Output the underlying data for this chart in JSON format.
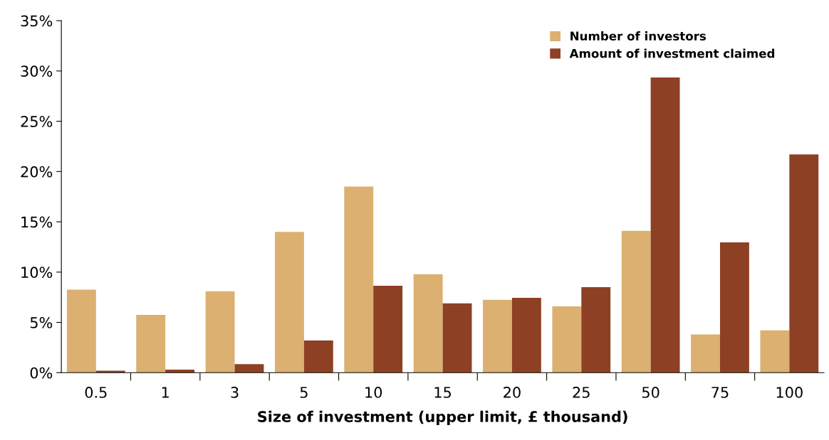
{
  "chart_data": {
    "type": "bar",
    "xlabel": "Size of investment (upper limit, £ thousand)",
    "categories": [
      "0.5",
      "1",
      "3",
      "5",
      "10",
      "15",
      "20",
      "25",
      "50",
      "75",
      "100"
    ],
    "series": [
      {
        "name": "Number of investors",
        "color": "#dbb070",
        "values": [
          8.25,
          5.75,
          8.1,
          14.0,
          18.5,
          9.8,
          7.25,
          6.6,
          14.1,
          3.8,
          4.2
        ]
      },
      {
        "name": "Amount of investment claimed",
        "color": "#8e4024",
        "values": [
          0.2,
          0.3,
          0.85,
          3.2,
          8.65,
          6.9,
          7.45,
          8.5,
          29.35,
          12.95,
          21.7
        ]
      }
    ],
    "ylim": [
      0,
      35
    ],
    "yticks": [
      {
        "value": 0,
        "label": "0%"
      },
      {
        "value": 5,
        "label": "5%"
      },
      {
        "value": 10,
        "label": "10%"
      },
      {
        "value": 15,
        "label": "15%"
      },
      {
        "value": 20,
        "label": "20%"
      },
      {
        "value": 25,
        "label": "25%"
      },
      {
        "value": 30,
        "label": "30%"
      },
      {
        "value": 35,
        "label": "35%"
      }
    ],
    "grid": false,
    "legend": "top right"
  }
}
